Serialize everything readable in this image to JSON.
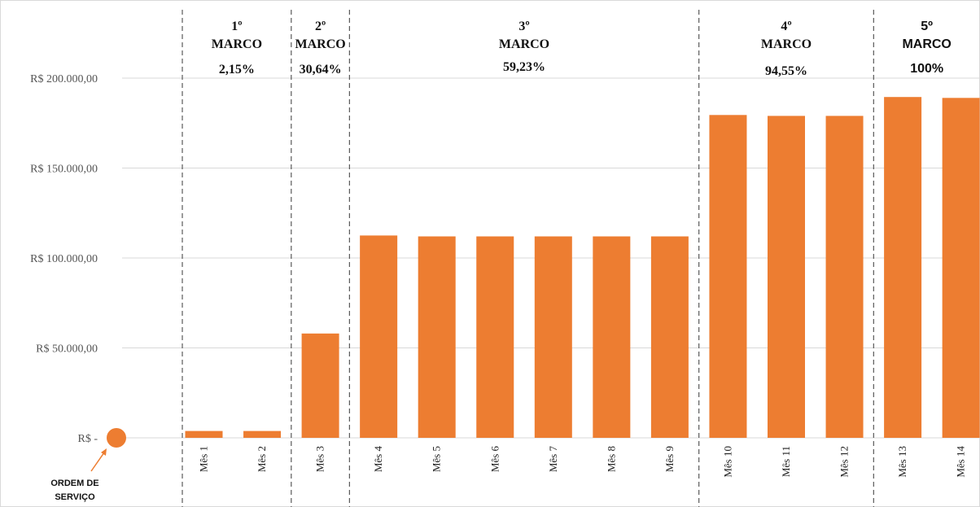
{
  "colors": {
    "bar": "#ED7D31",
    "grid": "#D9D9D9",
    "divider": "#595959"
  },
  "origin_marker": {
    "label_line1": "ORDEM DE",
    "label_line2": "SERVIÇO",
    "value": 0
  },
  "milestones": [
    {
      "title_line1": "1º",
      "title_line2": "MARCO",
      "percent": "2,15%"
    },
    {
      "title_line1": "2º",
      "title_line2": "MARCO",
      "percent": "30,64%"
    },
    {
      "title_line1": "3º",
      "title_line2": "MARCO",
      "percent": "59,23%"
    },
    {
      "title_line1": "4º",
      "title_line2": "MARCO",
      "percent": "94,55%"
    },
    {
      "title_line1": "5º",
      "title_line2": "MARCO",
      "percent": "100%"
    }
  ],
  "chart_data": {
    "type": "bar",
    "title": "",
    "xlabel": "",
    "ylabel": "",
    "ylim": [
      0,
      200000
    ],
    "grid": true,
    "ytick_values": [
      0,
      50000,
      100000,
      150000,
      200000
    ],
    "ytick_labels": [
      "R$ -",
      "R$ 50.000,00",
      "R$ 100.000,00",
      "R$ 150.000,00",
      "R$ 200.000,00"
    ],
    "categories": [
      "Mês 1",
      "Mês 2",
      "Mês 3",
      "Mês 4",
      "Mês 5",
      "Mês 6",
      "Mês 7",
      "Mês 8",
      "Mês 9",
      "Mês 10",
      "Mês 11",
      "Mês 12",
      "Mês 13",
      "Mês 14"
    ],
    "values": [
      3800,
      3800,
      58000,
      112500,
      112000,
      112000,
      112000,
      112000,
      112000,
      179500,
      179000,
      179000,
      189500,
      189000
    ],
    "milestone_after_month_index": [
      2,
      3,
      9,
      12
    ]
  }
}
